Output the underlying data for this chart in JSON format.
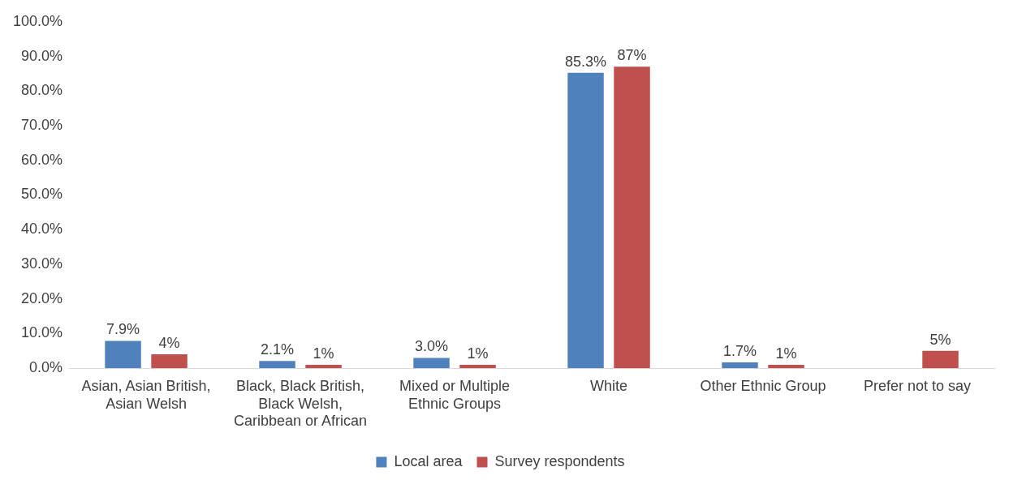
{
  "chart_data": {
    "type": "bar",
    "categories": [
      "Asian, Asian British, Asian Welsh",
      "Black, Black British, Black Welsh, Caribbean or African",
      "Mixed or Multiple Ethnic Groups",
      "White",
      "Other Ethnic Group",
      "Prefer not to say"
    ],
    "series": [
      {
        "name": "Local area",
        "color": "#4f81bd",
        "values": [
          7.9,
          2.1,
          3.0,
          85.3,
          1.7,
          null
        ],
        "value_labels": [
          "7.9%",
          "2.1%",
          "3.0%",
          "85.3%",
          "1.7%",
          null
        ]
      },
      {
        "name": "Survey respondents",
        "color": "#c0504d",
        "values": [
          4,
          1,
          1,
          87,
          1,
          5
        ],
        "value_labels": [
          "4%",
          "1%",
          "1%",
          "87%",
          "1%",
          "5%"
        ]
      }
    ],
    "ylim": [
      0,
      100
    ],
    "yticks": [
      {
        "value": 0,
        "label": "0.0%"
      },
      {
        "value": 10,
        "label": "10.0%"
      },
      {
        "value": 20,
        "label": "20.0%"
      },
      {
        "value": 30,
        "label": "30.0%"
      },
      {
        "value": 40,
        "label": "40.0%"
      },
      {
        "value": 50,
        "label": "50.0%"
      },
      {
        "value": 60,
        "label": "60.0%"
      },
      {
        "value": 70,
        "label": "70.0%"
      },
      {
        "value": 80,
        "label": "80.0%"
      },
      {
        "value": 90,
        "label": "90.0%"
      },
      {
        "value": 100,
        "label": "100.0%"
      }
    ],
    "grid": false,
    "legend": "bottom"
  }
}
